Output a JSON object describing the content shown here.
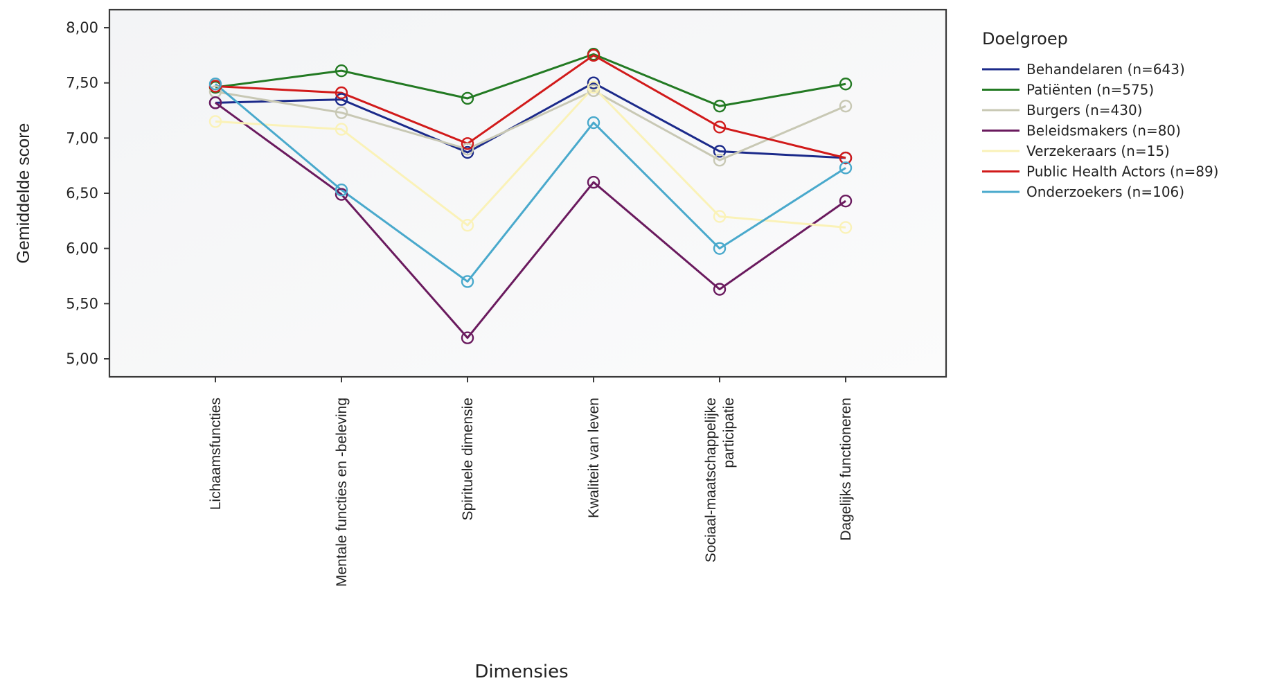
{
  "chart_data": {
    "type": "line",
    "title": "",
    "xlabel": "Dimensies",
    "ylabel": "Gemiddelde score",
    "ylim": [
      5.0,
      8.0
    ],
    "yticks": [
      "5,00",
      "5,50",
      "6,00",
      "6,50",
      "7,00",
      "7,50",
      "8,00"
    ],
    "ytick_values": [
      5.0,
      5.5,
      6.0,
      6.5,
      7.0,
      7.5,
      8.0
    ],
    "categories": [
      [
        "Lichaamsfuncties"
      ],
      [
        "Mentale functies en -beleving"
      ],
      [
        "Spirituele dimensie"
      ],
      [
        "Kwaliteit van leven"
      ],
      [
        "Sociaal-maatschappelijke",
        "participatie"
      ],
      [
        "Dagelijks functioneren"
      ]
    ],
    "grid": false,
    "markers": "open-circle",
    "legend": {
      "title": "Doelgroep",
      "placement": "right"
    },
    "series": [
      {
        "name": "Behandelaren (n=643)",
        "color": "#1b2a8a",
        "values": [
          7.32,
          7.35,
          6.87,
          7.5,
          6.88,
          6.82
        ]
      },
      {
        "name": "Patiënten (n=575)",
        "color": "#237a23",
        "values": [
          7.46,
          7.61,
          7.36,
          7.76,
          7.29,
          7.49
        ]
      },
      {
        "name": "Burgers (n=430)",
        "color": "#c8c8b4",
        "values": [
          7.42,
          7.23,
          6.9,
          7.43,
          6.8,
          7.29
        ]
      },
      {
        "name": "Beleidsmakers (n=80)",
        "color": "#6a1a5e",
        "values": [
          7.32,
          6.49,
          5.19,
          6.6,
          5.63,
          6.43
        ]
      },
      {
        "name": "Verzekeraars (n=15)",
        "color": "#faf2b8",
        "values": [
          7.15,
          7.08,
          6.21,
          7.46,
          6.29,
          6.19
        ]
      },
      {
        "name": "Public Health Actors (n=89)",
        "color": "#d11a1a",
        "values": [
          7.47,
          7.41,
          6.95,
          7.75,
          7.1,
          6.82
        ]
      },
      {
        "name": "Onderzoekers (n=106)",
        "color": "#49a9cc",
        "values": [
          7.49,
          6.53,
          5.7,
          7.14,
          6.0,
          6.73
        ]
      }
    ]
  }
}
